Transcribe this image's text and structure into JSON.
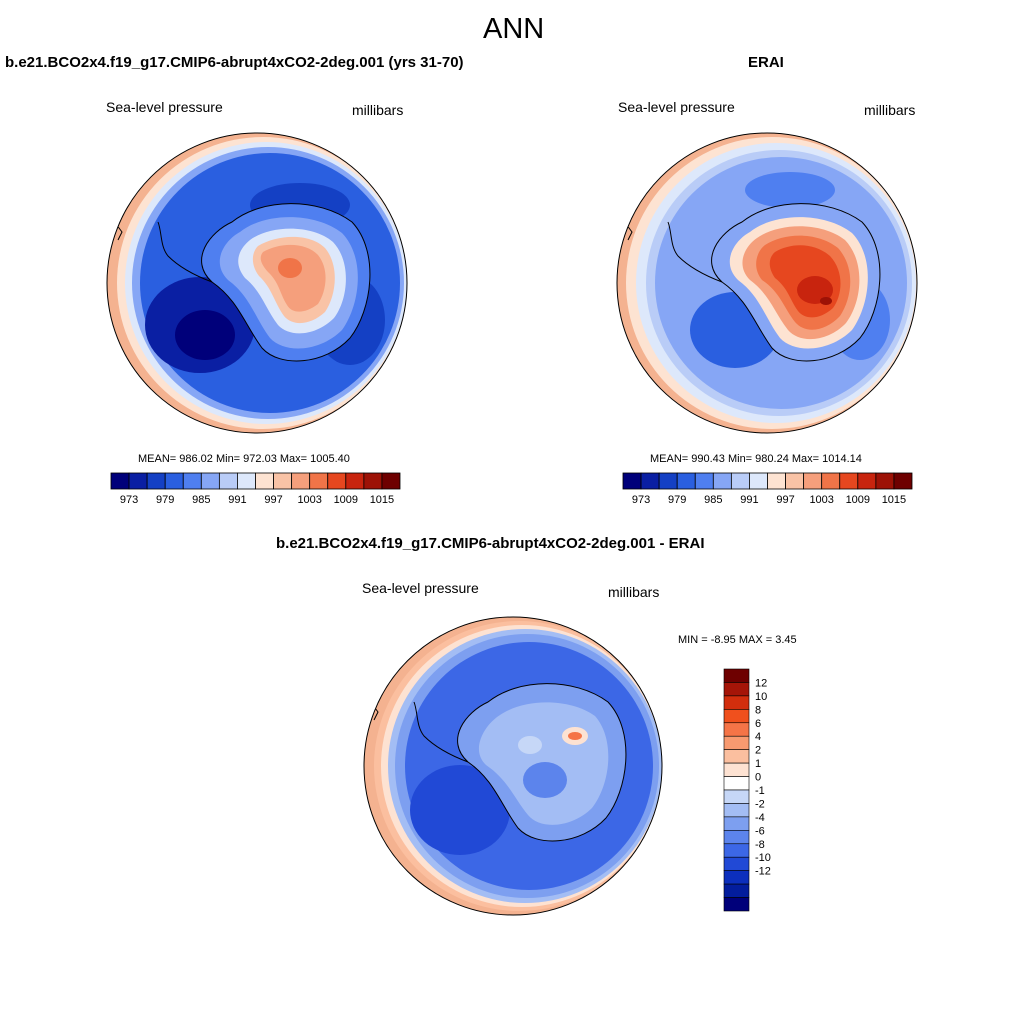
{
  "page": {
    "title": "ANN"
  },
  "panels": {
    "model": {
      "title": "b.e21.BCO2x4.f19_g17.CMIP6-abrupt4xCO2-2deg.001 (yrs 31-70)",
      "variable": "Sea-level pressure",
      "units": "millibars",
      "stats": "MEAN= 986.02  Min= 972.03  Max= 1005.40"
    },
    "obs": {
      "title": "ERAI",
      "variable": "Sea-level pressure",
      "units": "millibars",
      "stats": "MEAN= 990.43  Min= 980.24  Max= 1014.14"
    },
    "diff": {
      "title": "b.e21.BCO2x4.f19_g17.CMIP6-abrupt4xCO2-2deg.001 - ERAI",
      "variable": "Sea-level pressure",
      "units": "millibars",
      "stats": "MIN =  -8.95 MAX =   3.45"
    }
  },
  "colorbars": {
    "abs": {
      "colors": [
        "#00007a",
        "#0a1fa3",
        "#1440c4",
        "#2a5fe0",
        "#4f7ff0",
        "#86a6f5",
        "#b9ccf7",
        "#dde8fb",
        "#fde3d2",
        "#f9c3a6",
        "#f59f7c",
        "#f07448",
        "#e6471f",
        "#c8240e",
        "#9d1206",
        "#6e0000"
      ],
      "ticks": [
        "973",
        "979",
        "985",
        "991",
        "997",
        "1003",
        "1009",
        "1015"
      ]
    },
    "diff": {
      "colors": [
        "#6e0000",
        "#a51508",
        "#d22e0d",
        "#f0501d",
        "#f57447",
        "#f89a70",
        "#fbbf9f",
        "#fde2d2",
        "#ffffff",
        "#c6d7f7",
        "#a3bdf4",
        "#7d9ff0",
        "#5c84ec",
        "#3c67e6",
        "#2149d6",
        "#0c2fbd",
        "#031d9d",
        "#00007a"
      ],
      "ticks": [
        "12",
        "10",
        "8",
        "6",
        "4",
        "2",
        "1",
        "0",
        "-1",
        "-2",
        "-4",
        "-6",
        "-8",
        "-10",
        "-12"
      ]
    }
  }
}
